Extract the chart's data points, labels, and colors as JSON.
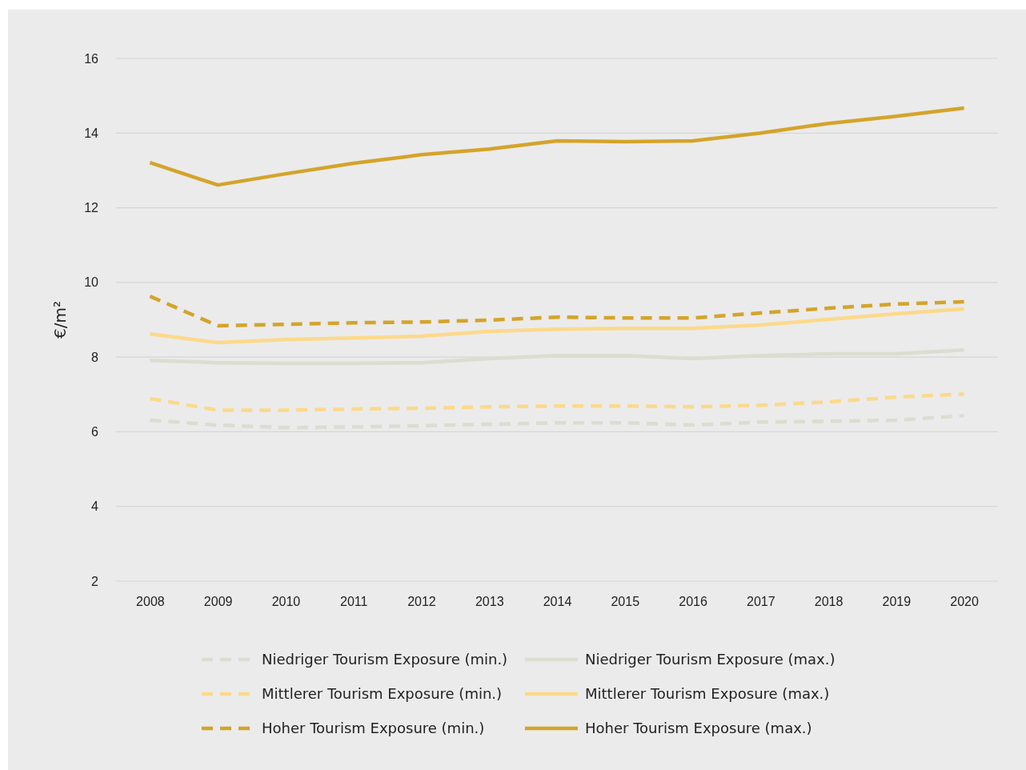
{
  "chart_data": {
    "type": "line",
    "ylabel": "€/m²",
    "categories": [
      "2008",
      "2009",
      "2010",
      "2011",
      "2012",
      "2013",
      "2014",
      "2015",
      "2016",
      "2017",
      "2018",
      "2019",
      "2020"
    ],
    "ylim": [
      2,
      16
    ],
    "yticks": [
      2,
      4,
      6,
      8,
      10,
      12,
      14,
      16
    ],
    "grid": "y",
    "legend": "bottom",
    "marker": "none",
    "series": [
      {
        "name": "Niedriger Tourism Exposure (min.)",
        "color": "#dcdcd0",
        "line_style": "dashed",
        "values": [
          6.31,
          6.18,
          6.11,
          6.13,
          6.16,
          6.2,
          6.24,
          6.24,
          6.18,
          6.26,
          6.28,
          6.31,
          6.43
        ]
      },
      {
        "name": "Niedriger Tourism Exposure (max.)",
        "color": "#dcdcd0",
        "line_style": "solid",
        "values": [
          7.91,
          7.85,
          7.83,
          7.83,
          7.85,
          7.96,
          8.04,
          8.04,
          7.96,
          8.04,
          8.09,
          8.09,
          8.19
        ]
      },
      {
        "name": "Mittlerer Tourism Exposure (min.)",
        "color": "#fcd98a",
        "line_style": "dashed",
        "values": [
          6.89,
          6.58,
          6.58,
          6.61,
          6.63,
          6.67,
          6.69,
          6.69,
          6.67,
          6.71,
          6.8,
          6.93,
          7.01
        ]
      },
      {
        "name": "Mittlerer Tourism Exposure (max.)",
        "color": "#fcd98a",
        "line_style": "solid",
        "values": [
          8.62,
          8.39,
          8.47,
          8.51,
          8.56,
          8.69,
          8.75,
          8.77,
          8.77,
          8.86,
          9.01,
          9.16,
          9.29
        ]
      },
      {
        "name": "Hoher Tourism Exposure (min.)",
        "color": "#d4a42a",
        "line_style": "dashed",
        "values": [
          9.63,
          8.84,
          8.88,
          8.92,
          8.94,
          8.99,
          9.07,
          9.05,
          9.05,
          9.18,
          9.31,
          9.42,
          9.48
        ]
      },
      {
        "name": "Hoher Tourism Exposure (max.)",
        "color": "#d4a42a",
        "line_style": "solid",
        "values": [
          13.21,
          12.61,
          12.91,
          13.19,
          13.42,
          13.57,
          13.79,
          13.77,
          13.79,
          14.0,
          14.26,
          14.45,
          14.67
        ]
      }
    ]
  }
}
